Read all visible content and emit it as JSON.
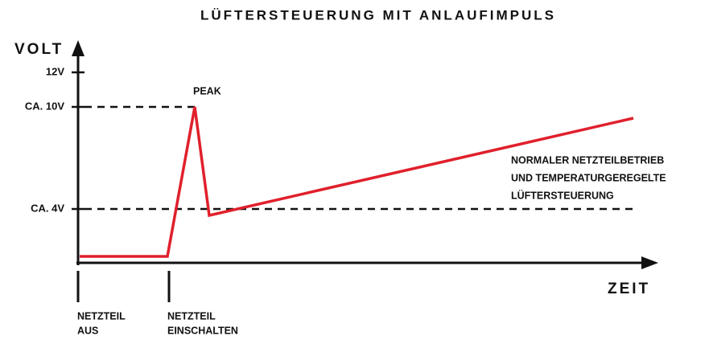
{
  "title": "LÜFTERSTEUERUNG MIT ANLAUFIMPULS",
  "y_axis": {
    "label": "VOLT",
    "ticks": [
      "12V",
      "CA. 10V",
      "CA. 4V"
    ]
  },
  "x_axis": {
    "label": "ZEIT"
  },
  "annotations": {
    "peak": "PEAK",
    "normal": [
      "NORMALER NETZTEILBETRIEB",
      "UND TEMPERATURGEREGELTE",
      "LÜFTERSTEUERUNG"
    ]
  },
  "events": [
    [
      "NETZTEIL",
      "AUS"
    ],
    [
      "NETZTEIL",
      "EINSCHALTEN"
    ]
  ]
}
